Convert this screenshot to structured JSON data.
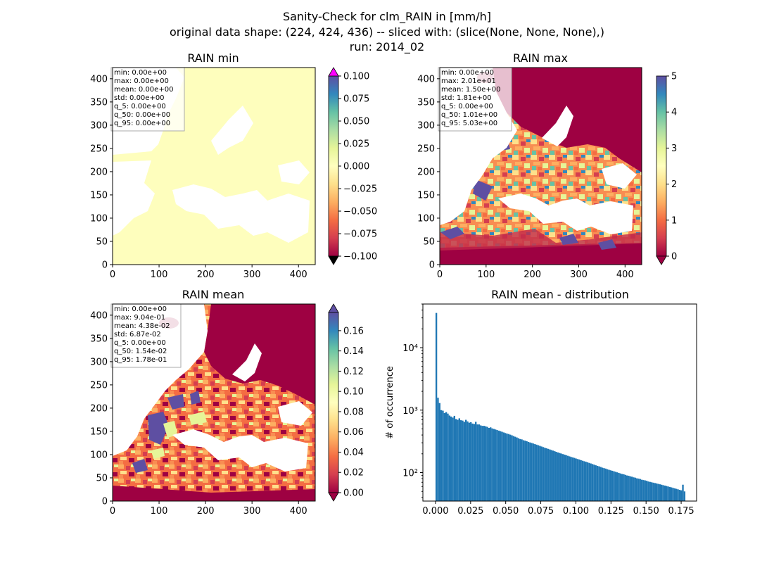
{
  "suptitle": {
    "line1": "Sanity-Check for clm_RAIN in [mm/h]",
    "line2": "original data shape: (224, 424, 436) -- sliced with: (slice(None, None, None),)",
    "line3": "run: 2014_02"
  },
  "colors": {
    "land_min": "#fefebd",
    "hist_bar": "#1f77b4",
    "over_min": "#ff00ff",
    "under": "#000000",
    "spectral_r": [
      "#9e0142",
      "#d53e4f",
      "#f46d43",
      "#fdae61",
      "#fee08b",
      "#ffffbf",
      "#e6f598",
      "#abdda4",
      "#66c2a5",
      "#3288bd",
      "#5e4fa2"
    ]
  },
  "chart_data": [
    {
      "type": "heatmap",
      "title": "RAIN min",
      "xlim": [
        0,
        436
      ],
      "ylim": [
        0,
        424
      ],
      "xticks": [
        "0",
        "100",
        "200",
        "300",
        "400"
      ],
      "yticks": [
        "0",
        "50",
        "100",
        "150",
        "200",
        "250",
        "300",
        "350",
        "400"
      ],
      "colorbar": {
        "range": [
          -0.1,
          0.1
        ],
        "ticks": [
          "0.100",
          "0.075",
          "0.050",
          "0.025",
          "0.000",
          "−0.025",
          "−0.050",
          "−0.075",
          "−0.100"
        ],
        "extend": "both"
      },
      "stats": [
        "min: 0.00e+00",
        "max: 0.00e+00",
        "mean: 0.00e+00",
        "std: 0.00e+00",
        "q_5: 0.00e+00",
        "q_50: 0.00e+00",
        "q_95: 0.00e+00"
      ]
    },
    {
      "type": "heatmap",
      "title": "RAIN max",
      "xlim": [
        0,
        436
      ],
      "ylim": [
        0,
        424
      ],
      "xticks": [
        "0",
        "100",
        "200",
        "300",
        "400"
      ],
      "yticks": [
        "0",
        "50",
        "100",
        "150",
        "200",
        "250",
        "300",
        "350",
        "400"
      ],
      "colorbar": {
        "range": [
          0,
          5
        ],
        "ticks": [
          "5",
          "4",
          "3",
          "2",
          "1",
          "0"
        ],
        "extend": "min"
      },
      "stats": [
        "min: 0.00e+00",
        "max: 2.01e+01",
        "mean: 1.50e+00",
        "std: 1.81e+00",
        "q_5: 0.00e+00",
        "q_50: 1.01e+00",
        "q_95: 5.03e+00"
      ]
    },
    {
      "type": "heatmap",
      "title": "RAIN mean",
      "xlim": [
        0,
        436
      ],
      "ylim": [
        0,
        424
      ],
      "xticks": [
        "0",
        "100",
        "200",
        "300",
        "400"
      ],
      "yticks": [
        "0",
        "50",
        "100",
        "150",
        "200",
        "250",
        "300",
        "350",
        "400"
      ],
      "colorbar": {
        "range": [
          0,
          0.178
        ],
        "ticks": [
          "0.16",
          "0.14",
          "0.12",
          "0.10",
          "0.08",
          "0.06",
          "0.04",
          "0.02",
          "0.00"
        ],
        "extend": "both"
      },
      "stats": [
        "min: 0.00e+00",
        "max: 9.04e-01",
        "mean: 4.38e-02",
        "std: 6.87e-02",
        "q_5: 0.00e+00",
        "q_50: 1.54e-02",
        "q_95: 1.78e-01"
      ]
    },
    {
      "type": "bar",
      "title": "RAIN mean - distribution",
      "xlabel": "",
      "ylabel": "# of occurrence",
      "yscale": "log",
      "xlim": [
        -0.009,
        0.186
      ],
      "ylim": [
        35,
        50000
      ],
      "xticks": [
        "0.000",
        "0.025",
        "0.050",
        "0.075",
        "0.100",
        "0.125",
        "0.150",
        "0.175"
      ],
      "yticks": [
        "10²",
        "10³",
        "10⁴"
      ],
      "bin_range": [
        0,
        0.178
      ],
      "counts": [
        36000,
        1580,
        1300,
        1000,
        980,
        900,
        930,
        880,
        820,
        790,
        760,
        810,
        720,
        700,
        740,
        690,
        680,
        650,
        700,
        660,
        630,
        640,
        610,
        600,
        650,
        590,
        590,
        570,
        560,
        560,
        550,
        540,
        520,
        530,
        510,
        500,
        490,
        480,
        470,
        460,
        450,
        440,
        430,
        420,
        415,
        405,
        395,
        385,
        375,
        365,
        355,
        345,
        340,
        330,
        325,
        318,
        310,
        304,
        298,
        292,
        286,
        280,
        274,
        268,
        262,
        256,
        250,
        245,
        240,
        235,
        230,
        225,
        220,
        215,
        210,
        206,
        202,
        198,
        194,
        190,
        186,
        182,
        178,
        175,
        172,
        168,
        165,
        162,
        158,
        155,
        152,
        149,
        146,
        143,
        140,
        137,
        134,
        131,
        128,
        126,
        123,
        120,
        118,
        116,
        113,
        111,
        109,
        107,
        105,
        103,
        101,
        99,
        97,
        95,
        94,
        92,
        90,
        89,
        87,
        86,
        84,
        83,
        81,
        80,
        79,
        77,
        76,
        75,
        74,
        72,
        71,
        70,
        69,
        68,
        67,
        66,
        65,
        64,
        63,
        62,
        61,
        60,
        59,
        58,
        57,
        56,
        55,
        54,
        53,
        52,
        64,
        50
      ]
    }
  ]
}
